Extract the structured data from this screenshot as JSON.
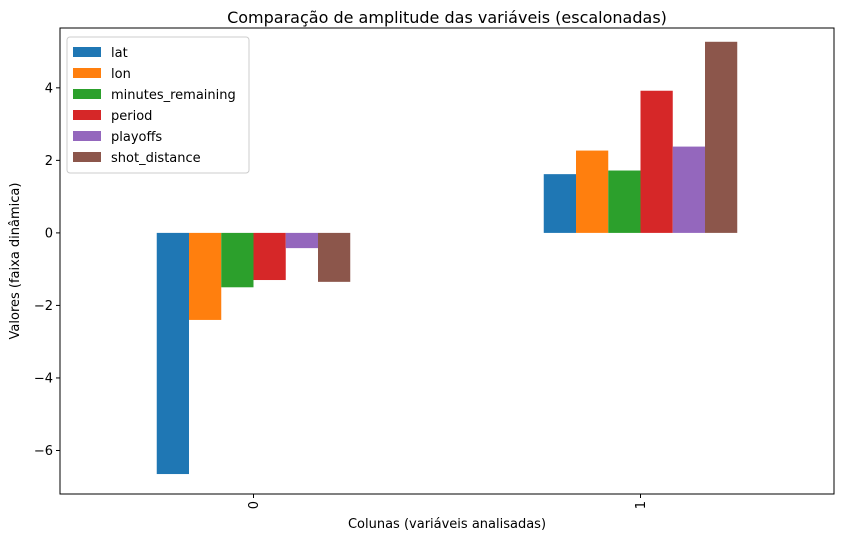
{
  "chart_data": {
    "type": "bar",
    "title": "Comparação de amplitude das variáveis (escalonadas)",
    "xlabel": "Colunas (variáveis analisadas)",
    "ylabel": "Valores (faixa dinâmica)",
    "categories": [
      "0",
      "1"
    ],
    "ylim": [
      -7.2,
      5.65
    ],
    "yticks": [
      -6,
      -4,
      -2,
      0,
      2,
      4
    ],
    "ytick_labels": [
      "−6",
      "−4",
      "−2",
      "0",
      "2",
      "4"
    ],
    "grid": false,
    "legend_position": "top-left",
    "series": [
      {
        "name": "lat",
        "color": "#1f77b4",
        "values": [
          -6.65,
          1.62
        ]
      },
      {
        "name": "lon",
        "color": "#ff7f0e",
        "values": [
          -2.4,
          2.27
        ]
      },
      {
        "name": "minutes_remaining",
        "color": "#2ca02c",
        "values": [
          -1.5,
          1.72
        ]
      },
      {
        "name": "period",
        "color": "#d62728",
        "values": [
          -1.3,
          3.92
        ]
      },
      {
        "name": "playoffs",
        "color": "#9467bd",
        "values": [
          -0.42,
          2.38
        ]
      },
      {
        "name": "shot_distance",
        "color": "#8c564b",
        "values": [
          -1.35,
          5.27
        ]
      }
    ]
  }
}
